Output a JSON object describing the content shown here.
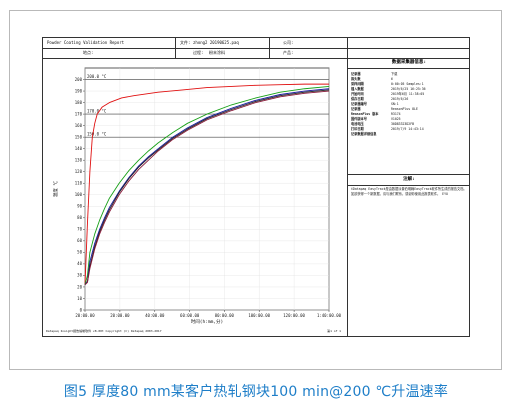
{
  "report": {
    "title": "Powder Coating Validation Report",
    "file_label": "文件:",
    "file_value": "zhong2 20190625.paq",
    "company_label": "公司:",
    "location_label": "地点:",
    "process_label": "过程:",
    "process_value": "粉末涂料",
    "product_label": "产品:",
    "info_title": "数据采集器信息:",
    "info_rows": [
      {
        "label": "记录器",
        "value": "下载"
      },
      {
        "label": "探头数",
        "value": "6"
      },
      {
        "label": "采样间隔",
        "value": "0:00:05 Samples:1"
      },
      {
        "label": "插入数据",
        "value": "2019/6/25 16:25:36"
      },
      {
        "label": "开始时间",
        "value": "2019年6月 11:38:05"
      },
      {
        "label": "保存日期",
        "value": "2019/6/26"
      },
      {
        "label": "记录器编号",
        "value": "SN:1"
      },
      {
        "label": "记录器",
        "value": "ReasonPlus 8LE"
      },
      {
        "label": "ReasonPlus 版本",
        "value": "R3174"
      },
      {
        "label": "固件版本号",
        "value": "V1025"
      },
      {
        "label": "电池电压",
        "value": "30D83323D2FB"
      },
      {
        "label": "打印日期",
        "value": "2019/7/9 14:43:14"
      },
      {
        "label": "记录数据详细信息",
        "value": ""
      }
    ],
    "notes_title": "注解:",
    "notes_text": "©Datapaq EasyTrack是由数据派普伯明翰EasyTrack软件所生成的报告文档。 如欲获得一个新数据，请与我们联系。感谢你使用此报表软件。 EYO",
    "footer_left": "Datapaq Insight报告编制软件 v8.00t  Copyright (C) Datapaq 2003-2017",
    "footer_right": "第1 of 1"
  },
  "caption": "图5 厚度80 mm某客户热轧钢块100 min@200 ℃升温速率",
  "chart_data": {
    "type": "line",
    "title": "",
    "xlabel": "时间(h:mm,分)",
    "ylabel": "温度 ℃",
    "xlim": [
      0,
      100
    ],
    "ylim": [
      0,
      210
    ],
    "x_ticks": [
      "20:00.00",
      "20:00.00",
      "40:00.00",
      "60:00.00",
      "80:00.00",
      "100:00.00",
      "120:00.00",
      "1:40:00.00"
    ],
    "x_tick_positions": [
      0,
      14.3,
      28.6,
      42.9,
      57.1,
      71.4,
      85.7,
      100
    ],
    "y_ticks": [
      0,
      10,
      20,
      30,
      40,
      50,
      60,
      70,
      80,
      90,
      100,
      110,
      120,
      130,
      140,
      150,
      160,
      170,
      180,
      190,
      200
    ],
    "reference_lines": [
      {
        "value": 200,
        "label": "200.0 °C"
      },
      {
        "value": 170,
        "label": "170.0 °C"
      },
      {
        "value": 150,
        "label": "150.0 °C"
      }
    ],
    "series": [
      {
        "color": "#e01010",
        "x": [
          0,
          1,
          2,
          3,
          4,
          5,
          7,
          10,
          15,
          20,
          30,
          40,
          50,
          60,
          70,
          80,
          90,
          100
        ],
        "y": [
          22,
          75,
          120,
          150,
          162,
          170,
          176,
          180,
          184,
          186,
          189,
          191,
          193,
          194,
          195,
          195.5,
          196,
          196
        ]
      },
      {
        "color": "#18a018",
        "x": [
          0,
          1,
          2,
          4,
          6,
          8,
          10,
          14,
          18,
          22,
          26,
          30,
          36,
          42,
          50,
          60,
          70,
          80,
          90,
          100
        ],
        "y": [
          22,
          30,
          50,
          66,
          78,
          88,
          97,
          110,
          121,
          130,
          138,
          145,
          154,
          162,
          170,
          178,
          184,
          189,
          192,
          194
        ]
      },
      {
        "color": "#1a1aa0",
        "x": [
          0,
          1,
          2,
          4,
          6,
          8,
          10,
          14,
          18,
          22,
          26,
          30,
          36,
          42,
          50,
          60,
          70,
          80,
          90,
          100
        ],
        "y": [
          22,
          25,
          42,
          58,
          70,
          80,
          89,
          103,
          115,
          125,
          133,
          140,
          150,
          158,
          167,
          175,
          182,
          187,
          190,
          192
        ]
      },
      {
        "color": "#222222",
        "x": [
          0,
          1,
          2,
          4,
          6,
          8,
          10,
          14,
          18,
          22,
          26,
          30,
          36,
          42,
          50,
          60,
          70,
          80,
          90,
          100
        ],
        "y": [
          22,
          24,
          38,
          55,
          68,
          78,
          87,
          102,
          114,
          124,
          132,
          139,
          149,
          157,
          166,
          174,
          181,
          186,
          189,
          191
        ]
      },
      {
        "color": "#8a1a3a",
        "x": [
          0,
          1,
          2,
          4,
          6,
          8,
          10,
          14,
          18,
          22,
          26,
          30,
          36,
          42,
          50,
          60,
          70,
          80,
          90,
          100
        ],
        "y": [
          22,
          24,
          36,
          53,
          66,
          76,
          85,
          100,
          112,
          122,
          130,
          138,
          148,
          156,
          165,
          173,
          180,
          185,
          188,
          190
        ]
      }
    ],
    "grid": true
  }
}
